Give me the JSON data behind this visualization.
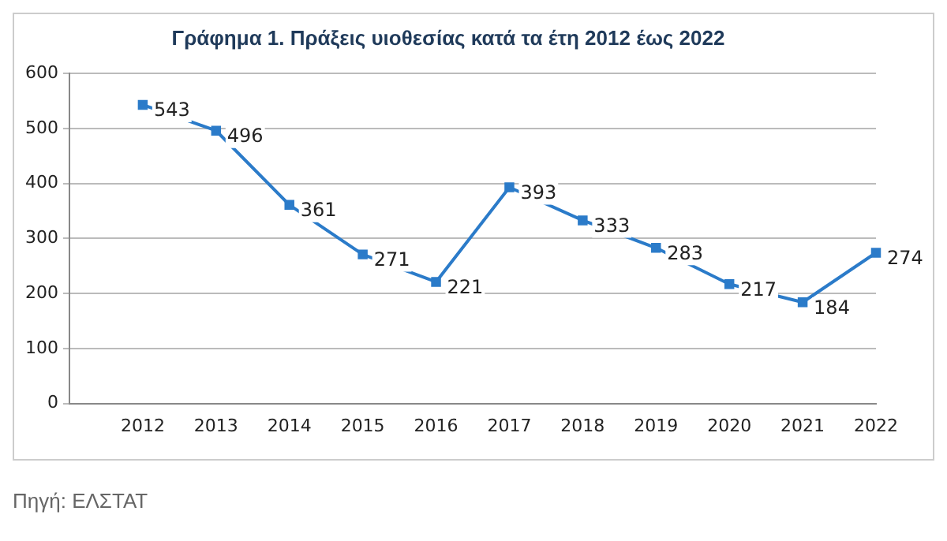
{
  "chart_data": {
    "type": "line",
    "title": "Γράφημα 1. Πράξεις υιοθεσίας κατά τα έτη 2012 έως 2022",
    "categories": [
      null,
      "2012",
      "2013",
      "2014",
      "2015",
      "2016",
      "2017",
      "2018",
      "2019",
      "2020",
      "2021",
      "2022"
    ],
    "series": [
      {
        "color": "#2b7bc9",
        "values": [
          null,
          543,
          496,
          361,
          271,
          221,
          393,
          333,
          283,
          217,
          184,
          274
        ]
      }
    ],
    "ylim": [
      0,
      600
    ],
    "yticks": [
      0,
      100,
      200,
      300,
      400,
      500,
      600
    ],
    "grid": "y",
    "legend": false,
    "marker": "square",
    "line_style": "solid",
    "data_labels": true,
    "annotations": [
      "Πηγή: ΕΛΣΤΑΤ"
    ]
  }
}
